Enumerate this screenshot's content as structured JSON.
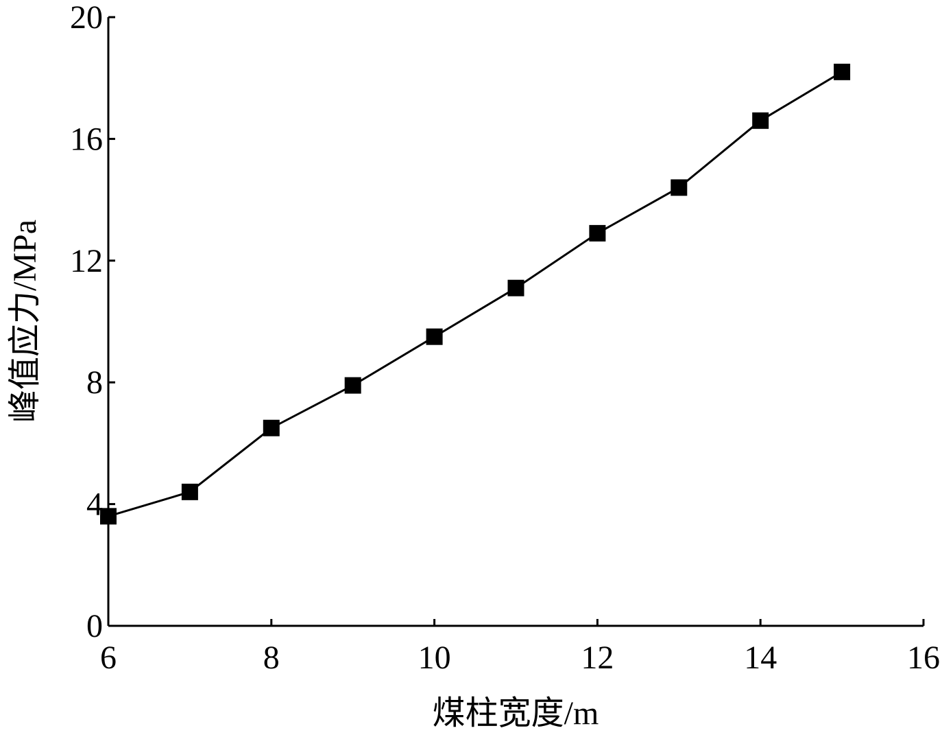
{
  "chart_data": {
    "type": "line",
    "x_label": "煤柱宽度/m",
    "y_label": "峰值应力/MPa",
    "x": [
      6,
      7,
      8,
      9,
      10,
      11,
      12,
      13,
      14,
      15
    ],
    "values": [
      3.6,
      4.4,
      6.5,
      7.9,
      9.5,
      11.1,
      12.9,
      14.4,
      16.6,
      18.2
    ],
    "color": "#000000",
    "marker": "square",
    "xlim": [
      6,
      16
    ],
    "xticks": [
      6,
      8,
      10,
      12,
      14,
      16
    ],
    "ylim": [
      0,
      20
    ],
    "yticks": [
      0,
      4,
      8,
      12,
      16,
      20
    ]
  }
}
